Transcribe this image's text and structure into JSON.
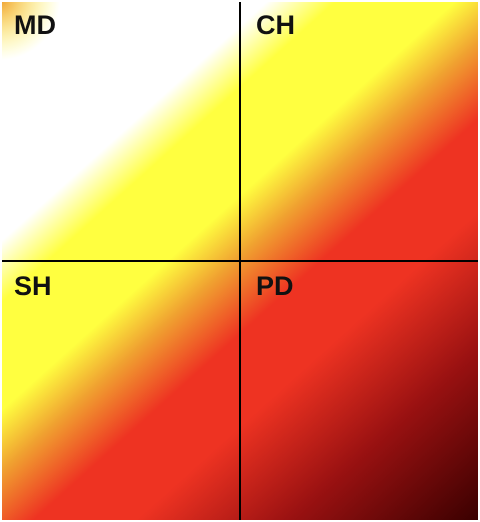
{
  "quadrants": {
    "top_left": {
      "label": "MD"
    },
    "top_right": {
      "label": "CH"
    },
    "bottom_left": {
      "label": "SH"
    },
    "bottom_right": {
      "label": "PD"
    }
  },
  "heatmap_colors": {
    "white": "#ffffff",
    "yellow": "#ffff40",
    "orange": "#f0a030",
    "red": "#ee3322",
    "dark_red": "#991111",
    "maroon": "#3a0000"
  }
}
